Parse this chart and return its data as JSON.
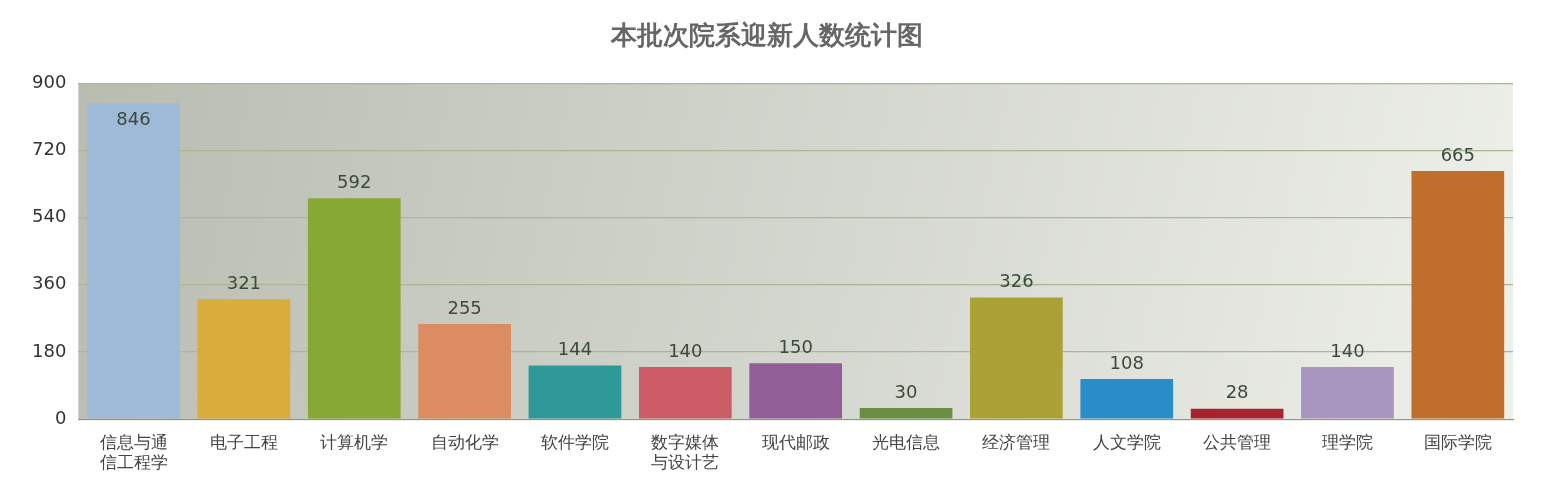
{
  "chart_data": {
    "type": "bar",
    "title": "本批次院系迎新人数统计图",
    "categories": [
      "信息与通信工程学",
      "电子工程",
      "计算机学",
      "自动化学",
      "软件学院",
      "数字媒体与设计艺",
      "现代邮政",
      "光电信息",
      "经济管理",
      "人文学院",
      "公共管理",
      "理学院",
      "国际学院"
    ],
    "values": [
      846,
      321,
      592,
      255,
      144,
      140,
      150,
      30,
      326,
      108,
      28,
      140,
      665
    ],
    "colors": [
      "#9fbad6",
      "#d8ad3c",
      "#86a834",
      "#dc8c62",
      "#2f9898",
      "#cc5c66",
      "#925f98",
      "#6c8e42",
      "#aaa235",
      "#2a8cc8",
      "#a82330",
      "#a896c0",
      "#c06e2c"
    ],
    "ylim": [
      0,
      900
    ],
    "yticks": [
      0,
      180,
      360,
      540,
      720,
      900
    ],
    "grid": "y",
    "data_labels": true
  }
}
